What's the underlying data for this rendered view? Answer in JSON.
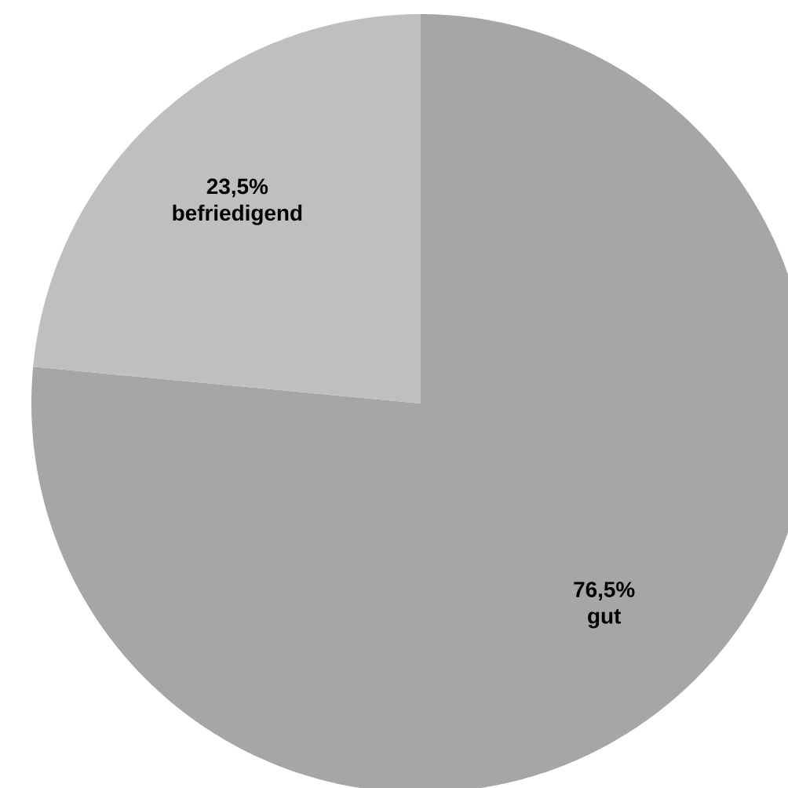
{
  "chart_data": {
    "type": "pie",
    "categories": [
      "gut",
      "befriedigend"
    ],
    "values": [
      76.5,
      23.5
    ],
    "colors": [
      "#a6a6a6",
      "#bfbfbf"
    ],
    "value_labels": [
      "76,5%",
      "23,5%"
    ]
  }
}
